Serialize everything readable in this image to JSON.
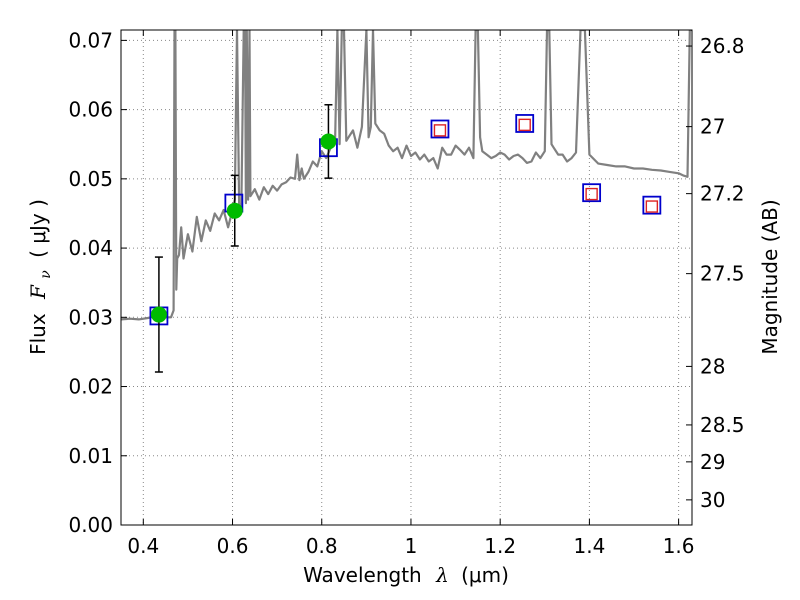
{
  "chart_data": {
    "type": "line",
    "xlabel_text": "Wavelength",
    "xlabel_symbol": "λ",
    "xlabel_unit": "(μm)",
    "ylabel_text": "Flux",
    "ylabel_symbol": "F",
    "ylabel_subscript": "ν",
    "ylabel_unit": "( μJy )",
    "y2label": "Magnitude (AB)",
    "xlim": [
      0.35,
      1.63
    ],
    "ylim": [
      0.0,
      0.0715
    ],
    "grid": true,
    "x_ticks": [
      0.4,
      0.6,
      0.8,
      1.0,
      1.2,
      1.4,
      1.6
    ],
    "x_tick_labels": [
      "0.4",
      "0.6",
      "0.8",
      "1",
      "1.2",
      "1.4",
      "1.6"
    ],
    "y_ticks": [
      0.0,
      0.01,
      0.02,
      0.03,
      0.04,
      0.05,
      0.06,
      0.07
    ],
    "y_tick_labels": [
      "0.00",
      "0.01",
      "0.02",
      "0.03",
      "0.04",
      "0.05",
      "0.06",
      "0.07"
    ],
    "y2_ticks": [
      26.8,
      27.0,
      27.2,
      27.5,
      28.0,
      28.5,
      29.0,
      30.0
    ],
    "y2_tick_labels": [
      "26.8",
      "27",
      "27.2",
      "27.5",
      "28",
      "28.5",
      "29",
      "30"
    ],
    "colors": {
      "spectrum": "#808080",
      "model_box": "#0000cc",
      "observed_box": "#dd2222",
      "measurement": "#00bb00",
      "errorbar": "#000000",
      "grid": "#888888"
    },
    "series": [
      {
        "name": "Model spectrum",
        "style": "line",
        "x": [
          0.35,
          0.37,
          0.39,
          0.41,
          0.43,
          0.45,
          0.462,
          0.468,
          0.47,
          0.472,
          0.474,
          0.476,
          0.48,
          0.485,
          0.49,
          0.5,
          0.51,
          0.52,
          0.53,
          0.54,
          0.55,
          0.56,
          0.57,
          0.58,
          0.59,
          0.6,
          0.605,
          0.61,
          0.615,
          0.62,
          0.625,
          0.628,
          0.63,
          0.632,
          0.635,
          0.638,
          0.64,
          0.65,
          0.66,
          0.67,
          0.68,
          0.69,
          0.7,
          0.71,
          0.72,
          0.73,
          0.74,
          0.745,
          0.75,
          0.755,
          0.76,
          0.77,
          0.78,
          0.79,
          0.8,
          0.81,
          0.82,
          0.83,
          0.835,
          0.84,
          0.845,
          0.85,
          0.855,
          0.86,
          0.87,
          0.88,
          0.89,
          0.9,
          0.905,
          0.91,
          0.915,
          0.92,
          0.93,
          0.94,
          0.95,
          0.96,
          0.97,
          0.98,
          0.99,
          1.0,
          1.01,
          1.02,
          1.03,
          1.04,
          1.05,
          1.06,
          1.07,
          1.08,
          1.09,
          1.1,
          1.11,
          1.12,
          1.13,
          1.14,
          1.145,
          1.15,
          1.155,
          1.16,
          1.17,
          1.18,
          1.19,
          1.2,
          1.21,
          1.22,
          1.23,
          1.24,
          1.25,
          1.26,
          1.27,
          1.28,
          1.29,
          1.3,
          1.305,
          1.31,
          1.315,
          1.32,
          1.33,
          1.34,
          1.35,
          1.36,
          1.37,
          1.38,
          1.39,
          1.4,
          1.42,
          1.44,
          1.46,
          1.48,
          1.5,
          1.52,
          1.54,
          1.56,
          1.58,
          1.6,
          1.61,
          1.62,
          1.625,
          1.63
        ],
        "values": [
          0.0297,
          0.0298,
          0.0297,
          0.0299,
          0.0302,
          0.03,
          0.03,
          0.031,
          0.0715,
          0.0715,
          0.034,
          0.0385,
          0.039,
          0.043,
          0.0385,
          0.042,
          0.0395,
          0.0445,
          0.041,
          0.044,
          0.0425,
          0.045,
          0.044,
          0.0455,
          0.043,
          0.0455,
          0.047,
          0.0715,
          0.0455,
          0.0465,
          0.0715,
          0.0715,
          0.0465,
          0.0715,
          0.047,
          0.0715,
          0.0475,
          0.0485,
          0.047,
          0.0488,
          0.0478,
          0.049,
          0.0483,
          0.0492,
          0.0495,
          0.0502,
          0.05,
          0.0535,
          0.0498,
          0.0515,
          0.05,
          0.051,
          0.0525,
          0.0518,
          0.054,
          0.053,
          0.0545,
          0.0555,
          0.0715,
          0.055,
          0.0715,
          0.0715,
          0.0555,
          0.056,
          0.057,
          0.0545,
          0.0575,
          0.0715,
          0.056,
          0.0575,
          0.0715,
          0.058,
          0.057,
          0.0565,
          0.0548,
          0.054,
          0.0545,
          0.053,
          0.0548,
          0.0533,
          0.0538,
          0.0528,
          0.0535,
          0.0525,
          0.053,
          0.0515,
          0.0545,
          0.0535,
          0.0535,
          0.0548,
          0.0542,
          0.0535,
          0.0545,
          0.053,
          0.0715,
          0.0715,
          0.056,
          0.054,
          0.0535,
          0.053,
          0.0533,
          0.0538,
          0.0535,
          0.0528,
          0.0533,
          0.0535,
          0.053,
          0.0523,
          0.0525,
          0.0538,
          0.053,
          0.054,
          0.0715,
          0.0715,
          0.055,
          0.0545,
          0.0535,
          0.0535,
          0.0525,
          0.053,
          0.0538,
          0.0715,
          0.0715,
          0.0535,
          0.0522,
          0.052,
          0.0518,
          0.0518,
          0.0515,
          0.0515,
          0.0513,
          0.0512,
          0.051,
          0.0508,
          0.0505,
          0.0503,
          0.0715,
          0.0715
        ]
      },
      {
        "name": "Model photometry",
        "style": "blue-square",
        "x": [
          0.435,
          0.603,
          0.815,
          1.065,
          1.255,
          1.405,
          1.54
        ],
        "values": [
          0.0302,
          0.0465,
          0.0545,
          0.0572,
          0.058,
          0.048,
          0.0462
        ]
      },
      {
        "name": "Observed photometry",
        "style": "red-square",
        "x": [
          1.065,
          1.255,
          1.405,
          1.54
        ],
        "values": [
          0.057,
          0.0578,
          0.0478,
          0.046
        ]
      },
      {
        "name": "Measured flux",
        "style": "green-circle",
        "x": [
          0.435,
          0.605,
          0.815
        ],
        "values": [
          0.0304,
          0.0454,
          0.0554
        ],
        "err": [
          0.0083,
          0.0051,
          0.0053
        ]
      }
    ]
  }
}
